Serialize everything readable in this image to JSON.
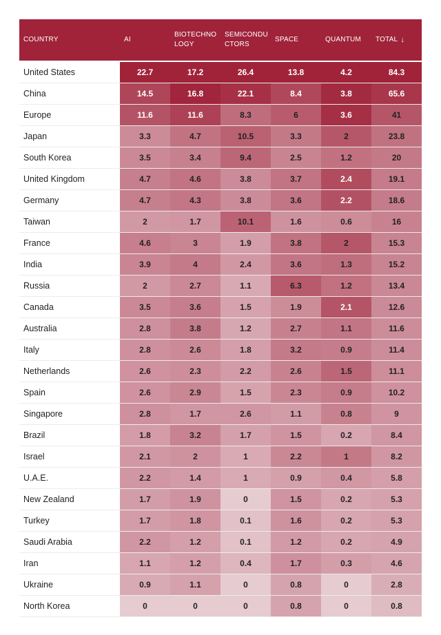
{
  "table": {
    "headers": [
      {
        "label": "COUNTRY",
        "key": "country"
      },
      {
        "label": "AI",
        "key": "ai"
      },
      {
        "label": "BIOTECHNO LOGY",
        "key": "bio"
      },
      {
        "label": "SEMICONDU CTORS",
        "key": "semi"
      },
      {
        "label": "SPACE",
        "key": "space"
      },
      {
        "label": "QUANTUM",
        "key": "quantum"
      },
      {
        "label": "TOTAL",
        "key": "total",
        "sort_icon": "↓"
      }
    ],
    "rows": [
      [
        "United States",
        22.7,
        17.2,
        26.4,
        13.8,
        4.2,
        84.3
      ],
      [
        "China",
        14.5,
        16.8,
        22.1,
        8.4,
        3.8,
        65.6
      ],
      [
        "Europe",
        11.6,
        11.6,
        8.3,
        6,
        3.6,
        41
      ],
      [
        "Japan",
        3.3,
        4.7,
        10.5,
        3.3,
        2,
        23.8
      ],
      [
        "South Korea",
        3.5,
        3.4,
        9.4,
        2.5,
        1.2,
        20
      ],
      [
        "United Kingdom",
        4.7,
        4.6,
        3.8,
        3.7,
        2.4,
        19.1
      ],
      [
        "Germany",
        4.7,
        4.3,
        3.8,
        3.6,
        2.2,
        18.6
      ],
      [
        "Taiwan",
        2,
        1.7,
        10.1,
        1.6,
        0.6,
        16
      ],
      [
        "France",
        4.6,
        3,
        1.9,
        3.8,
        2,
        15.3
      ],
      [
        "India",
        3.9,
        4,
        2.4,
        3.6,
        1.3,
        15.2
      ],
      [
        "Russia",
        2,
        2.7,
        1.1,
        6.3,
        1.2,
        13.4
      ],
      [
        "Canada",
        3.5,
        3.6,
        1.5,
        1.9,
        2.1,
        12.6
      ],
      [
        "Australia",
        2.8,
        3.8,
        1.2,
        2.7,
        1.1,
        11.6
      ],
      [
        "Italy",
        2.8,
        2.6,
        1.8,
        3.2,
        0.9,
        11.4
      ],
      [
        "Netherlands",
        2.6,
        2.3,
        2.2,
        2.6,
        1.5,
        11.1
      ],
      [
        "Spain",
        2.6,
        2.9,
        1.5,
        2.3,
        0.9,
        10.2
      ],
      [
        "Singapore",
        2.8,
        1.7,
        2.6,
        1.1,
        0.8,
        9
      ],
      [
        "Brazil",
        1.8,
        3.2,
        1.7,
        1.5,
        0.2,
        8.4
      ],
      [
        "Israel",
        2.1,
        2,
        1,
        2.2,
        1,
        8.2
      ],
      [
        "U.A.E.",
        2.2,
        1.4,
        1,
        0.9,
        0.4,
        5.8
      ],
      [
        "New Zealand",
        1.7,
        1.9,
        0,
        1.5,
        0.2,
        5.3
      ],
      [
        "Turkey",
        1.7,
        1.8,
        0.1,
        1.6,
        0.2,
        5.3
      ],
      [
        "Saudi Arabia",
        2.2,
        1.2,
        0.1,
        1.2,
        0.2,
        4.9
      ],
      [
        "Iran",
        1.1,
        1.2,
        0.4,
        1.7,
        0.3,
        4.6
      ],
      [
        "Ukraine",
        0.9,
        1.1,
        0,
        0.8,
        0,
        2.8
      ],
      [
        "North Korea",
        0,
        0,
        0,
        0.8,
        0,
        0.8
      ]
    ]
  },
  "colors": {
    "header_bg": "#a0233a",
    "header_text": "#ffffff",
    "scale_light": "#ead4d9",
    "scale_dark": "#a0233a"
  }
}
